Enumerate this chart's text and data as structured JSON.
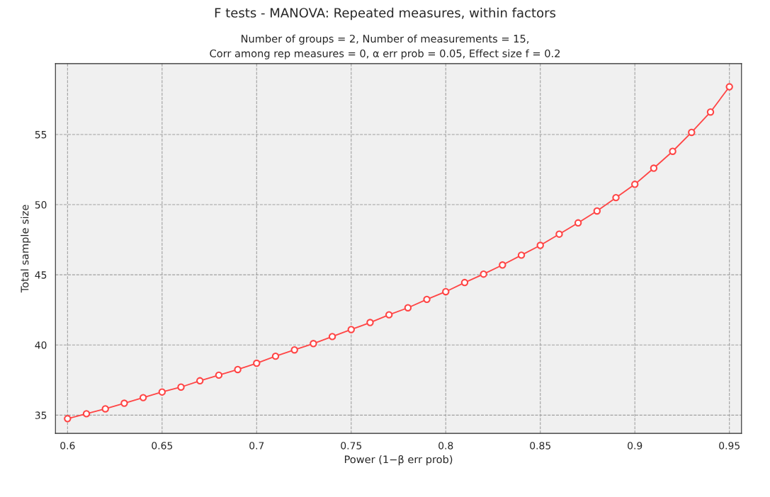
{
  "chart_data": {
    "type": "line",
    "title": "F tests - MANOVA: Repeated measures, within factors",
    "subtitle": "Number of groups = 2, Number of measurements = 15,\nCorr among rep measures = 0, α err prob = 0.05, Effect size f = 0.2",
    "xlabel": "Power (1−β err prob)",
    "ylabel": "Total sample size",
    "x": [
      0.6,
      0.61,
      0.62,
      0.63,
      0.64,
      0.65,
      0.66,
      0.67,
      0.68,
      0.69,
      0.7,
      0.71,
      0.72,
      0.73,
      0.74,
      0.75,
      0.76,
      0.77,
      0.78,
      0.79,
      0.8,
      0.81,
      0.82,
      0.83,
      0.84,
      0.85,
      0.86,
      0.87,
      0.88,
      0.89,
      0.9,
      0.91,
      0.92,
      0.93,
      0.94,
      0.95
    ],
    "series": [
      {
        "color": "#ff4545",
        "values": [
          34.75,
          35.1,
          35.45,
          35.85,
          36.25,
          36.65,
          37.0,
          37.45,
          37.85,
          38.25,
          38.7,
          39.2,
          39.65,
          40.1,
          40.6,
          41.1,
          41.6,
          42.15,
          42.65,
          43.25,
          43.8,
          44.45,
          45.05,
          45.7,
          46.4,
          47.1,
          47.9,
          48.7,
          49.55,
          50.5,
          51.45,
          52.6,
          53.8,
          55.15,
          56.6,
          58.4
        ]
      }
    ],
    "xlim": [
      0.5936,
      0.9564
    ],
    "xticks": [
      0.6,
      0.65,
      0.7,
      0.75,
      0.8,
      0.85,
      0.9,
      0.95
    ],
    "ylim": [
      33.7,
      60.05
    ],
    "yticks": [
      35,
      40,
      45,
      50,
      55
    ],
    "grid": true,
    "marker": "circle",
    "line_style": "solid",
    "legend": false
  }
}
